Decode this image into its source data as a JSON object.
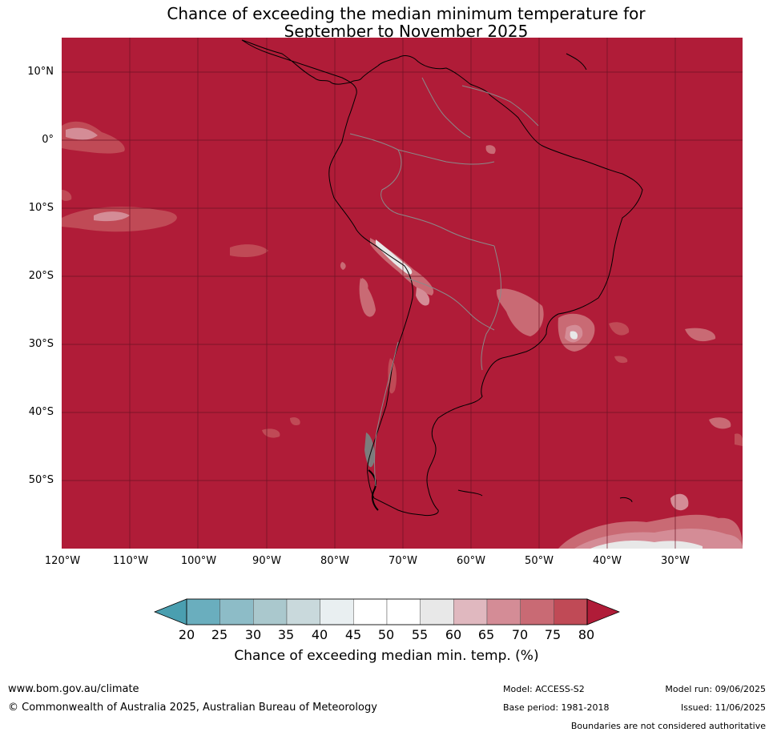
{
  "title": {
    "line1": "Chance of exceeding the median minimum temperature for",
    "line2": "September to November 2025"
  },
  "map": {
    "background_color": "#b01c38",
    "lat_labels": [
      "10°N",
      "0°",
      "10°S",
      "20°S",
      "30°S",
      "40°S",
      "50°S"
    ],
    "lon_labels": [
      "120°W",
      "110°W",
      "100°W",
      "90°W",
      "80°W",
      "70°W",
      "60°W",
      "50°W",
      "40°W",
      "30°W"
    ]
  },
  "colorbar": {
    "ticks": [
      "20",
      "25",
      "30",
      "35",
      "40",
      "45",
      "50",
      "55",
      "60",
      "65",
      "70",
      "75",
      "80"
    ],
    "colors": [
      "#4a9fb0",
      "#6aaebe",
      "#8dbcc7",
      "#aac8cd",
      "#c9d9dc",
      "#e9eff1",
      "#ffffff",
      "#ffffff",
      "#e8e8e8",
      "#e0b8bf",
      "#d48c96",
      "#c96a74",
      "#c04a56",
      "#b01c38"
    ],
    "label": "Chance of exceeding median min. temp. (%)"
  },
  "footer": {
    "website": "www.bom.gov.au/climate",
    "copyright": "© Commonwealth of Australia 2025, Australian Bureau of Meteorology",
    "model": "Model: ACCESS-S2",
    "base_period": "Base period: 1981-2018",
    "model_run": "Model run: 09/06/2025",
    "issued": "Issued: 11/06/2025",
    "disclaimer": "Boundaries are not considered authoritative"
  }
}
